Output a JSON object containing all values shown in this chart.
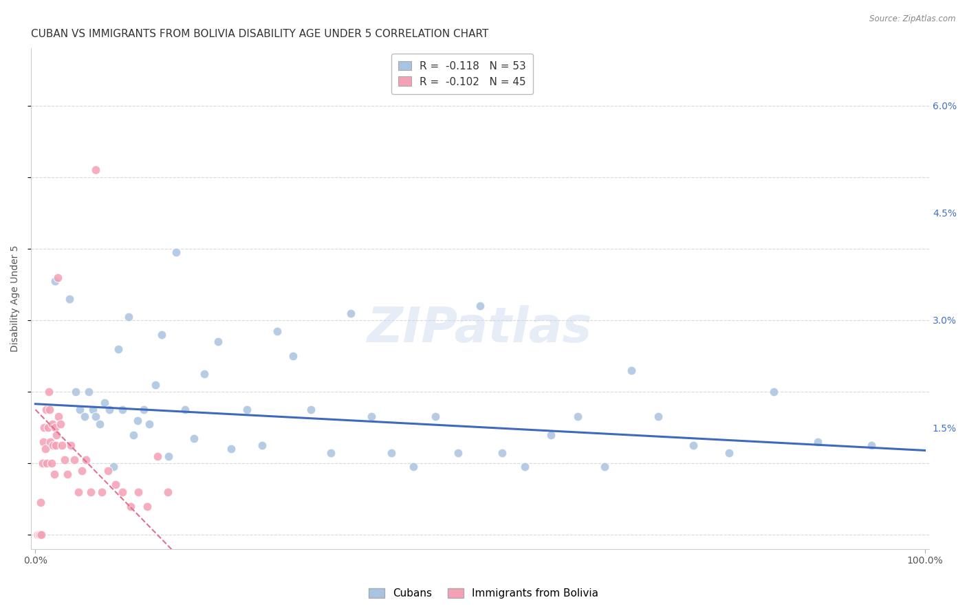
{
  "title": "CUBAN VS IMMIGRANTS FROM BOLIVIA DISABILITY AGE UNDER 5 CORRELATION CHART",
  "source": "Source: ZipAtlas.com",
  "ylabel": "Disability Age Under 5",
  "xlim": [
    -0.005,
    1.005
  ],
  "ylim": [
    -0.002,
    0.068
  ],
  "yticks": [
    0.0,
    0.015,
    0.03,
    0.045,
    0.06
  ],
  "ytick_labels": [
    "",
    "1.5%",
    "3.0%",
    "4.5%",
    "6.0%"
  ],
  "xtick_positions": [
    0.0,
    1.0
  ],
  "xtick_labels": [
    "0.0%",
    "100.0%"
  ],
  "cuban_color": "#a8c4e0",
  "bolivia_color": "#f4a0b5",
  "cuban_line_color": "#3d6abf",
  "bolivia_line_color": "#e07090",
  "cuban_R": "-0.118",
  "cuban_N": "53",
  "bolivia_R": "-0.102",
  "bolivia_N": "45",
  "background_color": "#ffffff",
  "grid_color": "#d8d8d8",
  "title_fontsize": 11,
  "axis_label_fontsize": 10,
  "tick_fontsize": 10,
  "legend_fontsize": 11,
  "marker_size": 85,
  "watermark_text": "ZIPatlas",
  "cubans_x": [
    0.022,
    0.038,
    0.045,
    0.05,
    0.055,
    0.06,
    0.065,
    0.068,
    0.072,
    0.078,
    0.083,
    0.088,
    0.093,
    0.098,
    0.105,
    0.11,
    0.115,
    0.122,
    0.128,
    0.135,
    0.142,
    0.15,
    0.158,
    0.168,
    0.178,
    0.19,
    0.205,
    0.22,
    0.238,
    0.255,
    0.272,
    0.29,
    0.31,
    0.332,
    0.355,
    0.378,
    0.4,
    0.425,
    0.45,
    0.475,
    0.5,
    0.525,
    0.55,
    0.58,
    0.61,
    0.64,
    0.67,
    0.7,
    0.74,
    0.78,
    0.83,
    0.88,
    0.94
  ],
  "cubans_y": [
    0.0355,
    0.033,
    0.02,
    0.0175,
    0.0165,
    0.02,
    0.0175,
    0.0165,
    0.0155,
    0.0185,
    0.0175,
    0.0095,
    0.026,
    0.0175,
    0.0305,
    0.014,
    0.016,
    0.0175,
    0.0155,
    0.021,
    0.028,
    0.011,
    0.0395,
    0.0175,
    0.0135,
    0.0225,
    0.027,
    0.012,
    0.0175,
    0.0125,
    0.0285,
    0.025,
    0.0175,
    0.0115,
    0.031,
    0.0165,
    0.0115,
    0.0095,
    0.0165,
    0.0115,
    0.032,
    0.0115,
    0.0095,
    0.014,
    0.0165,
    0.0095,
    0.023,
    0.0165,
    0.0125,
    0.0115,
    0.02,
    0.013,
    0.0125
  ],
  "bolivia_x": [
    0.002,
    0.003,
    0.004,
    0.005,
    0.006,
    0.007,
    0.008,
    0.009,
    0.01,
    0.011,
    0.012,
    0.013,
    0.014,
    0.015,
    0.016,
    0.017,
    0.018,
    0.019,
    0.02,
    0.021,
    0.022,
    0.023,
    0.024,
    0.025,
    0.026,
    0.028,
    0.03,
    0.033,
    0.036,
    0.04,
    0.044,
    0.048,
    0.052,
    0.057,
    0.062,
    0.068,
    0.075,
    0.082,
    0.09,
    0.098,
    0.107,
    0.116,
    0.126,
    0.137,
    0.149
  ],
  "bolivia_y": [
    0.0,
    0.0,
    0.0,
    0.0,
    0.0045,
    0.0,
    0.01,
    0.013,
    0.015,
    0.012,
    0.0175,
    0.01,
    0.015,
    0.02,
    0.0175,
    0.013,
    0.01,
    0.0155,
    0.0125,
    0.0085,
    0.015,
    0.0125,
    0.014,
    0.036,
    0.0165,
    0.0155,
    0.0125,
    0.0105,
    0.0085,
    0.0125,
    0.0105,
    0.006,
    0.009,
    0.0105,
    0.006,
    0.051,
    0.006,
    0.009,
    0.007,
    0.006,
    0.004,
    0.006,
    0.004,
    0.011,
    0.006
  ]
}
